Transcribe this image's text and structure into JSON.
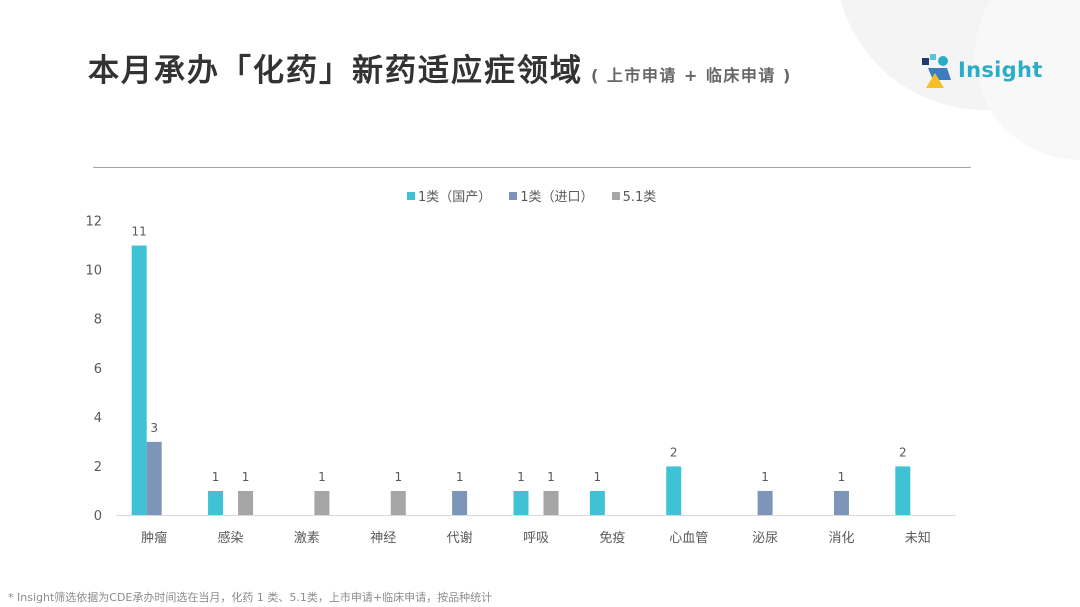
{
  "chart_data": {
    "type": "bar",
    "title": "本月承办「化药」新药适应症领域",
    "subtitle": "( 上市申请 + 临床申请 )",
    "categories": [
      "肿瘤",
      "感染",
      "激素",
      "神经",
      "代谢",
      "呼吸",
      "免疫",
      "心血管",
      "泌尿",
      "消化",
      "未知"
    ],
    "series": [
      {
        "name": "1类（国产）",
        "color": "#3FC2D4",
        "values": [
          11,
          1,
          0,
          0,
          0,
          1,
          1,
          2,
          0,
          0,
          2
        ]
      },
      {
        "name": "1类（进口）",
        "color": "#7D95B9",
        "values": [
          3,
          0,
          0,
          0,
          1,
          0,
          0,
          0,
          1,
          1,
          0
        ]
      },
      {
        "name": "5.1类",
        "color": "#A6A6A6",
        "values": [
          0,
          1,
          1,
          1,
          0,
          1,
          0,
          0,
          0,
          0,
          0
        ]
      }
    ],
    "ylim": [
      0,
      12
    ],
    "yticks": [
      0,
      2,
      4,
      6,
      8,
      10,
      12
    ],
    "data_labels": true,
    "legend_position": "top",
    "grid": false
  },
  "logo": {
    "text": "Insight",
    "icon": "insight-logo-icon",
    "color": "#2AAEC7"
  },
  "footnote": "* Insight筛选依据为CDE承办时间选在当月，化药 1 类、5.1类，上市申请+临床申请，按品种统计"
}
